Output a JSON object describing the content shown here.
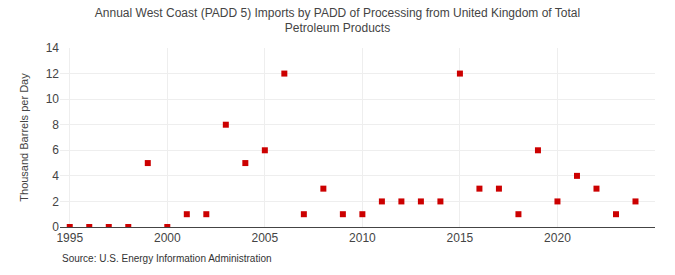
{
  "chart_data": {
    "type": "scatter",
    "title": "Annual West Coast (PADD 5) Imports by PADD of Processing from United Kingdom of Total\nPetroleum Products",
    "ylabel": "Thousand Barrels per Day",
    "annotations": [
      "Source: U.S. Energy Information Administration"
    ],
    "x": [
      1995,
      1996,
      1997,
      1998,
      1999,
      2000,
      2001,
      2002,
      2003,
      2004,
      2005,
      2006,
      2007,
      2008,
      2009,
      2010,
      2011,
      2012,
      2013,
      2014,
      2015,
      2016,
      2017,
      2018,
      2019,
      2020,
      2021,
      2022,
      2023,
      2024
    ],
    "values": [
      0,
      0,
      0,
      0,
      5,
      0,
      1,
      1,
      8,
      5,
      6,
      12,
      1,
      3,
      1,
      1,
      2,
      2,
      2,
      2,
      12,
      3,
      3,
      1,
      6,
      2,
      4,
      3,
      1,
      2
    ],
    "color": "#cc0000",
    "marker": "square",
    "xlim": [
      1994.5,
      2025
    ],
    "xticks": [
      1995,
      2000,
      2005,
      2010,
      2015,
      2020
    ],
    "ylim": [
      0,
      14
    ],
    "yticks": [
      0,
      2,
      4,
      6,
      8,
      10,
      12,
      14
    ],
    "grid": true
  }
}
